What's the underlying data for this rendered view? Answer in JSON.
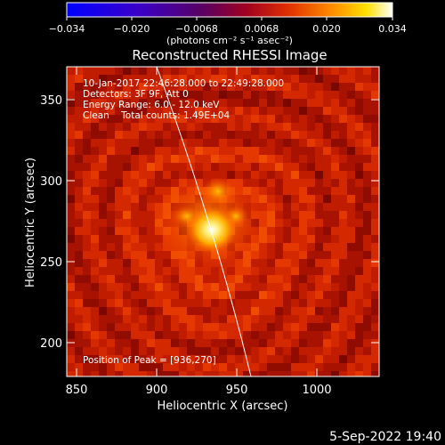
{
  "colorbar": {
    "ticks": [
      "−0.034",
      "−0.020",
      "−0.0068",
      "0.0068",
      "0.020",
      "0.034"
    ],
    "units": "(photons cm⁻² s⁻¹ asec⁻²)"
  },
  "plot": {
    "title": "Reconstructed RHESSI Image",
    "xlabel": "Heliocentric X (arcsec)",
    "ylabel": "Heliocentric Y (arcsec)",
    "xticks": [
      "850",
      "900",
      "950",
      "1000"
    ],
    "yticks": [
      "350",
      "300",
      "250",
      "200"
    ],
    "info_lines": [
      "10-Jan-2017 22:46:28.000 to 22:49:28.000",
      "Detectors: 3F 9F, Att 0",
      "Energy Range: 6.0 - 12.0 keV",
      "Clean    Total counts: 1.49E+04"
    ],
    "peak_text": "Position of Peak = [936,270]"
  },
  "footer": {
    "timestamp": "5-Sep-2022 19:40"
  },
  "colors": {
    "background": "#000000",
    "text": "#ffffff",
    "limb": "#ffffff"
  }
}
